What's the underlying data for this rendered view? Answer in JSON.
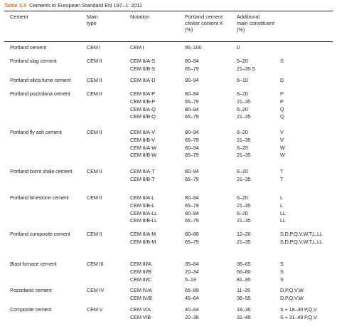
{
  "table": {
    "number": "Table 3.5",
    "title": "Cements to European Standard EN 197–1: 2011",
    "headers": {
      "cement": "Cement",
      "main_type": [
        "Main",
        "type"
      ],
      "notation": "Notation",
      "clinker": [
        "Portland cement",
        "clinker content K",
        "(%)"
      ],
      "additional": [
        "Additional",
        "main constituent",
        "(%)"
      ]
    },
    "groups": [
      {
        "name": "Portland cement",
        "type": "CEM I",
        "rows": [
          {
            "notation": "CEM I",
            "clinker": "95–100",
            "additional": "0",
            "constituent": ""
          }
        ]
      },
      {
        "name": "Portland slag cement",
        "type": "CEM II",
        "rows": [
          {
            "notation": "CEM II/A-S",
            "clinker": "80–94",
            "additional": "6–20",
            "constituent": "S"
          },
          {
            "notation": "CEM II/B-S",
            "clinker": "65–79",
            "additional": "21–35 S",
            "constituent": ""
          }
        ]
      },
      {
        "name": "Portland silica fume cement",
        "type": "CEM II",
        "rows": [
          {
            "notation": "CEM II/A-D",
            "clinker": "90–94",
            "additional": "6–10",
            "constituent": "D"
          }
        ]
      },
      {
        "name": "Portland pozzolana cement",
        "type": "CEM II",
        "rows": [
          {
            "notation": "CEM II/A-P",
            "clinker": "80–94",
            "additional": "6–20",
            "constituent": "P"
          },
          {
            "notation": "CEM II/B-P",
            "clinker": "65–79",
            "additional": "21–35",
            "constituent": "P"
          },
          {
            "notation": "CEM II/A-Q",
            "clinker": "80–94",
            "additional": "6–20",
            "constituent": "Q"
          },
          {
            "notation": "CEM II/B-Q",
            "clinker": "65–79",
            "additional": "21–35",
            "constituent": "Q"
          }
        ]
      },
      {
        "name": "Portland fly ash cement",
        "type": "CEM II",
        "rows": [
          {
            "notation": "CEM II/A-V",
            "clinker": "80–94",
            "additional": "6–20",
            "constituent": "V"
          },
          {
            "notation": "CEM II/B-V",
            "clinker": "65–79",
            "additional": "21–35",
            "constituent": "V"
          },
          {
            "notation": "CEM II/A-W",
            "clinker": "80–94",
            "additional": "6–20",
            "constituent": "W"
          },
          {
            "notation": "CEM II/B-W",
            "clinker": "65–79",
            "additional": "21–35",
            "constituent": "W"
          }
        ]
      },
      {
        "name": "Portland burnt shale cement",
        "type": "CEM II",
        "rows": [
          {
            "notation": "CEM II/A-T",
            "clinker": "80–94",
            "additional": "6–20",
            "constituent": "T"
          },
          {
            "notation": "CEM II/B-T",
            "clinker": "65–79",
            "additional": "21–35",
            "constituent": "T"
          }
        ]
      },
      {
        "name": "Portland limestone cement",
        "type": "CEM II",
        "rows": [
          {
            "notation": "CEM II/A-L",
            "clinker": "80–94",
            "additional": "6–20",
            "constituent": "L"
          },
          {
            "notation": "CEM II/B-L",
            "clinker": "65–79",
            "additional": "21–35",
            "constituent": "L"
          },
          {
            "notation": "CEM II/A-LL",
            "clinker": "80–94",
            "additional": "6–20",
            "constituent": "LL"
          },
          {
            "notation": "CEM II/B-LL",
            "clinker": "65–79",
            "additional": "21–35",
            "constituent": "LL"
          }
        ]
      },
      {
        "name": "Portland composite cement",
        "type": "CEM II",
        "rows": [
          {
            "notation": "CEM II/A-M",
            "clinker": "80–88",
            "additional": "12–20",
            "constituent": "S,D,P,Q,V,W,T,L,LL"
          },
          {
            "notation": "CEM II/B-M",
            "clinker": "65–79",
            "additional": "21–35",
            "constituent": "S,D,P,Q,V,W,T,L,LL"
          }
        ]
      },
      {
        "name": "Blast furnace cement",
        "type": "CEM III",
        "rows": [
          {
            "notation": "CEM III/A",
            "clinker": "35–64",
            "additional": "36–65",
            "constituent": "S"
          },
          {
            "notation": "CEM III/B",
            "clinker": "20–34",
            "additional": "66–80",
            "constituent": "S"
          },
          {
            "notation": "CEM III/C",
            "clinker": "5–19",
            "additional": "81–95",
            "constituent": "S"
          }
        ]
      },
      {
        "name": "Pozzolanic cement",
        "type": "CEM IV",
        "rows": [
          {
            "notation": "CEM IV/A",
            "clinker": "65–89",
            "additional": "11–35",
            "constituent": "D,P,Q,V,W"
          },
          {
            "notation": "CEM IV/B",
            "clinker": "45–64",
            "additional": "36–55",
            "constituent": "D,P,Q,V,W"
          }
        ]
      },
      {
        "name": "Composite cement",
        "type": "CEM V",
        "rows": [
          {
            "notation": "CEM V/A",
            "clinker": "40–64",
            "additional": "18–30",
            "constituent": "S + 18–30 P,Q,V"
          },
          {
            "notation": "CEM V/B",
            "clinker": "20–38",
            "additional": "31–49",
            "constituent": "S + 31–49 P,Q,V"
          }
        ]
      }
    ]
  }
}
